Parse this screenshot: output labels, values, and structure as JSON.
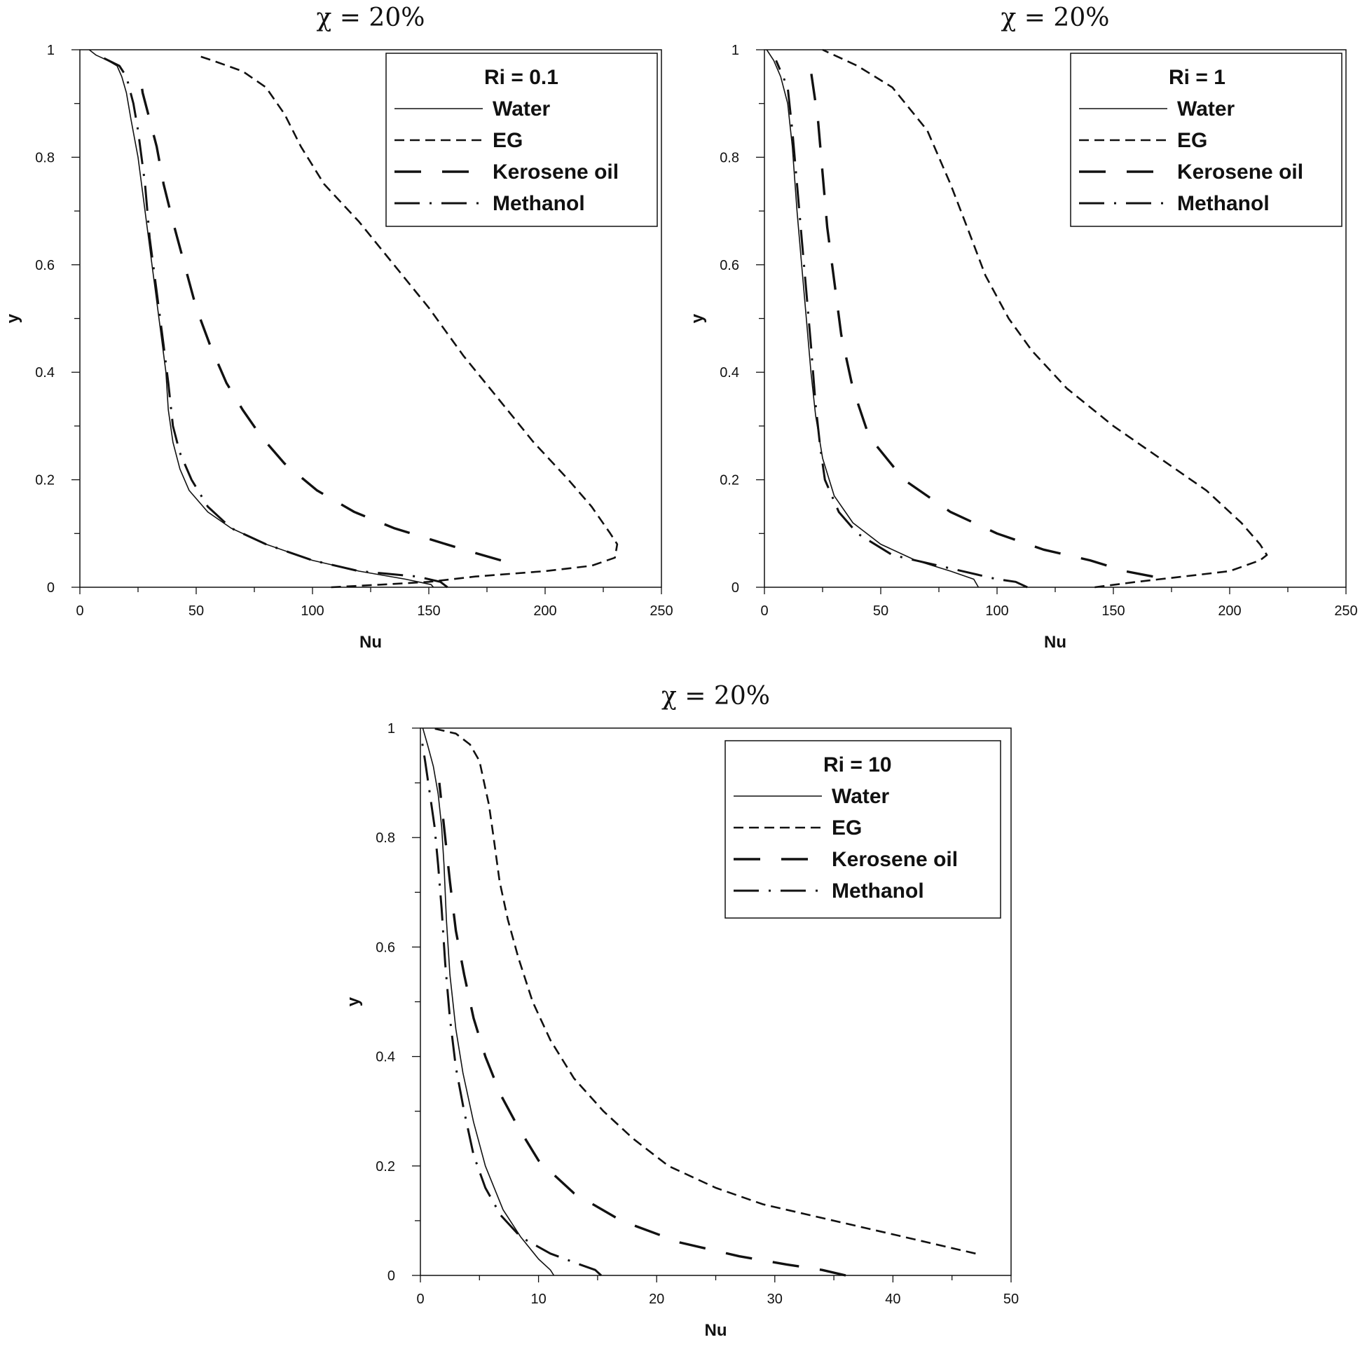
{
  "chart_data": [
    {
      "type": "line",
      "title": "χ = 20%",
      "xlabel": "Nu",
      "ylabel": "y",
      "xlim": [
        0,
        250
      ],
      "ylim": [
        0,
        1
      ],
      "xticks": [
        "0",
        "50",
        "100",
        "150",
        "200",
        "250"
      ],
      "yticks": [
        "0",
        "0.2",
        "0.4",
        "0.6",
        "0.8",
        "1"
      ],
      "legend_title": "Ri = 0.1",
      "legend_position": "top-right",
      "series": [
        {
          "name": "Water",
          "style": "solid",
          "x": [
            4,
            7,
            12,
            16,
            18,
            20,
            22,
            25,
            28,
            31,
            34,
            37,
            38,
            40,
            43,
            47,
            55,
            65,
            80,
            100,
            120,
            140,
            151,
            152
          ],
          "y": [
            1,
            0.99,
            0.98,
            0.97,
            0.95,
            0.92,
            0.87,
            0.8,
            0.7,
            0.6,
            0.5,
            0.4,
            0.33,
            0.27,
            0.22,
            0.18,
            0.14,
            0.11,
            0.08,
            0.05,
            0.03,
            0.015,
            0.005,
            0
          ]
        },
        {
          "name": "EG",
          "style": "dashed",
          "x": [
            108,
            130,
            150,
            170,
            200,
            220,
            230,
            231,
            228,
            220,
            210,
            195,
            180,
            165,
            150,
            135,
            120,
            105,
            95,
            88,
            80,
            70,
            57,
            50
          ],
          "y": [
            0,
            0.005,
            0.01,
            0.02,
            0.03,
            0.04,
            0.055,
            0.08,
            0.1,
            0.15,
            0.2,
            0.27,
            0.35,
            0.43,
            0.52,
            0.6,
            0.68,
            0.75,
            0.82,
            0.88,
            0.93,
            0.96,
            0.98,
            0.99
          ]
        },
        {
          "name": "Kerosene oil",
          "style": "long-dash",
          "x": [
            181,
            165,
            150,
            135,
            118,
            102,
            88,
            78,
            70,
            63,
            56,
            50,
            45,
            40,
            36,
            33,
            30,
            27,
            26
          ],
          "y": [
            0.05,
            0.07,
            0.09,
            0.11,
            0.14,
            0.18,
            0.23,
            0.28,
            0.33,
            0.38,
            0.45,
            0.52,
            0.6,
            0.68,
            0.75,
            0.82,
            0.87,
            0.92,
            0.95
          ]
        },
        {
          "name": "Methanol",
          "style": "dash-dot",
          "x": [
            158,
            155,
            145,
            120,
            100,
            80,
            65,
            55,
            48,
            43,
            40,
            38,
            36,
            33,
            30,
            28,
            25,
            23,
            20,
            17,
            10
          ],
          "y": [
            0,
            0.01,
            0.02,
            0.03,
            0.05,
            0.08,
            0.11,
            0.15,
            0.2,
            0.25,
            0.3,
            0.38,
            0.45,
            0.55,
            0.65,
            0.75,
            0.85,
            0.9,
            0.95,
            0.97,
            0.985
          ]
        }
      ]
    },
    {
      "type": "line",
      "title": "χ = 20%",
      "xlabel": "Nu",
      "ylabel": "y",
      "xlim": [
        0,
        250
      ],
      "ylim": [
        0,
        1
      ],
      "xticks": [
        "0",
        "50",
        "100",
        "150",
        "200",
        "250"
      ],
      "yticks": [
        "0",
        "0.2",
        "0.4",
        "0.6",
        "0.8",
        "1"
      ],
      "legend_title": "Ri = 1",
      "legend_position": "top-right",
      "series": [
        {
          "name": "Water",
          "style": "solid",
          "x": [
            1,
            4,
            7,
            10,
            12,
            14,
            16,
            18,
            20,
            22,
            25,
            30,
            38,
            50,
            65,
            80,
            90,
            92
          ],
          "y": [
            1,
            0.98,
            0.95,
            0.9,
            0.82,
            0.7,
            0.6,
            0.5,
            0.4,
            0.32,
            0.24,
            0.17,
            0.12,
            0.08,
            0.05,
            0.03,
            0.015,
            0
          ]
        },
        {
          "name": "EG",
          "style": "dashed",
          "x": [
            142,
            160,
            180,
            200,
            213,
            216,
            213,
            205,
            190,
            170,
            150,
            130,
            115,
            105,
            95,
            88,
            80,
            70,
            55,
            40,
            30,
            25
          ],
          "y": [
            0,
            0.01,
            0.02,
            0.03,
            0.05,
            0.06,
            0.08,
            0.12,
            0.18,
            0.24,
            0.3,
            0.37,
            0.44,
            0.5,
            0.58,
            0.66,
            0.75,
            0.85,
            0.93,
            0.97,
            0.99,
            1
          ]
        },
        {
          "name": "Kerosene oil",
          "style": "long-dash",
          "x": [
            167,
            155,
            140,
            120,
            100,
            80,
            60,
            45,
            38,
            33,
            30,
            27,
            25,
            23,
            20
          ],
          "y": [
            0.02,
            0.03,
            0.05,
            0.07,
            0.1,
            0.14,
            0.2,
            0.28,
            0.37,
            0.47,
            0.57,
            0.67,
            0.77,
            0.87,
            0.96
          ]
        },
        {
          "name": "Methanol",
          "style": "dash-dot",
          "x": [
            113,
            108,
            100,
            75,
            55,
            40,
            32,
            26,
            24,
            22,
            20,
            18,
            16,
            14,
            12,
            10,
            5
          ],
          "y": [
            0,
            0.01,
            0.015,
            0.04,
            0.06,
            0.1,
            0.14,
            0.2,
            0.26,
            0.34,
            0.45,
            0.55,
            0.65,
            0.75,
            0.85,
            0.93,
            0.98
          ]
        }
      ]
    },
    {
      "type": "line",
      "title": "χ = 20%",
      "xlabel": "Nu",
      "ylabel": "y",
      "xlim": [
        0,
        50
      ],
      "ylim": [
        0,
        1
      ],
      "xticks": [
        "0",
        "10",
        "20",
        "30",
        "40",
        "50"
      ],
      "yticks": [
        "0",
        "0.2",
        "0.4",
        "0.6",
        "0.8",
        "1"
      ],
      "legend_title": "Ri = 10",
      "legend_position": "top-right",
      "series": [
        {
          "name": "Water",
          "style": "solid",
          "x": [
            0.2,
            0.6,
            1.1,
            1.5,
            1.8,
            2.0,
            2.2,
            2.5,
            3.0,
            3.6,
            4.5,
            5.5,
            7.0,
            8.5,
            10.0,
            11.0,
            11.3
          ],
          "y": [
            1,
            0.97,
            0.93,
            0.88,
            0.82,
            0.75,
            0.65,
            0.55,
            0.45,
            0.37,
            0.28,
            0.2,
            0.12,
            0.07,
            0.03,
            0.01,
            0
          ]
        },
        {
          "name": "EG",
          "style": "dashed",
          "x": [
            47,
            45,
            41,
            37,
            33,
            29,
            25,
            21,
            18,
            15.5,
            13,
            11,
            9.5,
            8.3,
            7.4,
            6.7,
            6.2,
            5.8,
            5.4,
            5.0,
            4.2,
            3.0,
            1.0
          ],
          "y": [
            0.04,
            0.05,
            0.07,
            0.09,
            0.11,
            0.13,
            0.16,
            0.2,
            0.25,
            0.3,
            0.36,
            0.43,
            0.5,
            0.58,
            0.65,
            0.72,
            0.8,
            0.86,
            0.9,
            0.94,
            0.97,
            0.99,
            1
          ]
        },
        {
          "name": "Kerosene oil",
          "style": "long-dash",
          "x": [
            36,
            34,
            31,
            27,
            22,
            17,
            13,
            10,
            8.3,
            6.8,
            5.5,
            4.5,
            3.7,
            3.0,
            2.5,
            2.0,
            1.6
          ],
          "y": [
            0,
            0.01,
            0.02,
            0.035,
            0.06,
            0.1,
            0.15,
            0.21,
            0.27,
            0.33,
            0.4,
            0.47,
            0.55,
            0.63,
            0.72,
            0.82,
            0.9
          ]
        },
        {
          "name": "Methanol",
          "style": "dash-dot",
          "x": [
            15.3,
            14.8,
            13.5,
            11,
            8.5,
            6.8,
            5.5,
            4.5,
            3.7,
            3.0,
            2.5,
            2.1,
            1.8,
            1.5,
            1.2,
            0.8,
            0.4,
            0.1
          ],
          "y": [
            0,
            0.01,
            0.02,
            0.04,
            0.07,
            0.11,
            0.16,
            0.22,
            0.3,
            0.38,
            0.47,
            0.57,
            0.67,
            0.75,
            0.82,
            0.88,
            0.94,
            0.98
          ]
        }
      ]
    }
  ]
}
